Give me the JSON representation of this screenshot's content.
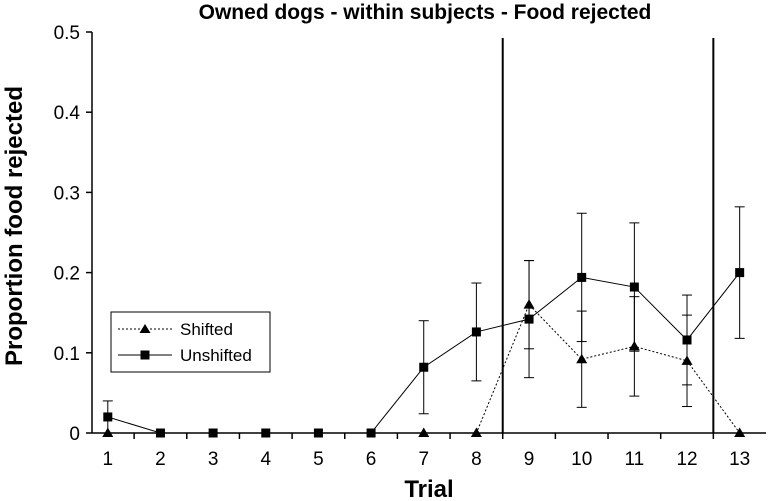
{
  "chart_data": {
    "type": "line",
    "title": "Owned dogs - within subjects - Food rejected",
    "xlabel": "Trial",
    "ylabel": "Proportion food rejected",
    "x": [
      1,
      2,
      3,
      4,
      5,
      6,
      7,
      8,
      9,
      10,
      11,
      12,
      13
    ],
    "xlim": [
      0.7,
      13.5
    ],
    "ylim": [
      0,
      0.5
    ],
    "yticks": [
      "0",
      "0.1",
      "0.2",
      "0.3",
      "0.4",
      "0.5"
    ],
    "xticks": [
      "1",
      "2",
      "3",
      "4",
      "5",
      "6",
      "7",
      "8",
      "9",
      "10",
      "11",
      "12",
      "13"
    ],
    "phase_boundaries": [
      8.5,
      12.5
    ],
    "legend": "center-left",
    "grid": false,
    "series": [
      {
        "name": "Shifted",
        "marker": "triangle",
        "line": "dotted",
        "color": "#000000",
        "values": [
          0,
          null,
          null,
          null,
          null,
          null,
          0,
          0,
          0.16,
          0.092,
          0.108,
          0.09,
          0
        ],
        "error": [
          null,
          null,
          null,
          null,
          null,
          null,
          null,
          null,
          0.055,
          0.06,
          0.062,
          0.057,
          null
        ]
      },
      {
        "name": "Unshifted",
        "marker": "square",
        "line": "solid",
        "color": "#000000",
        "values": [
          0.02,
          0,
          0,
          0,
          0,
          0,
          0.082,
          0.126,
          0.142,
          0.194,
          0.182,
          0.116,
          0.2
        ],
        "error": [
          0.02,
          null,
          null,
          null,
          null,
          null,
          0.058,
          0.061,
          0.073,
          0.08,
          0.08,
          0.056,
          0.082
        ]
      }
    ]
  }
}
